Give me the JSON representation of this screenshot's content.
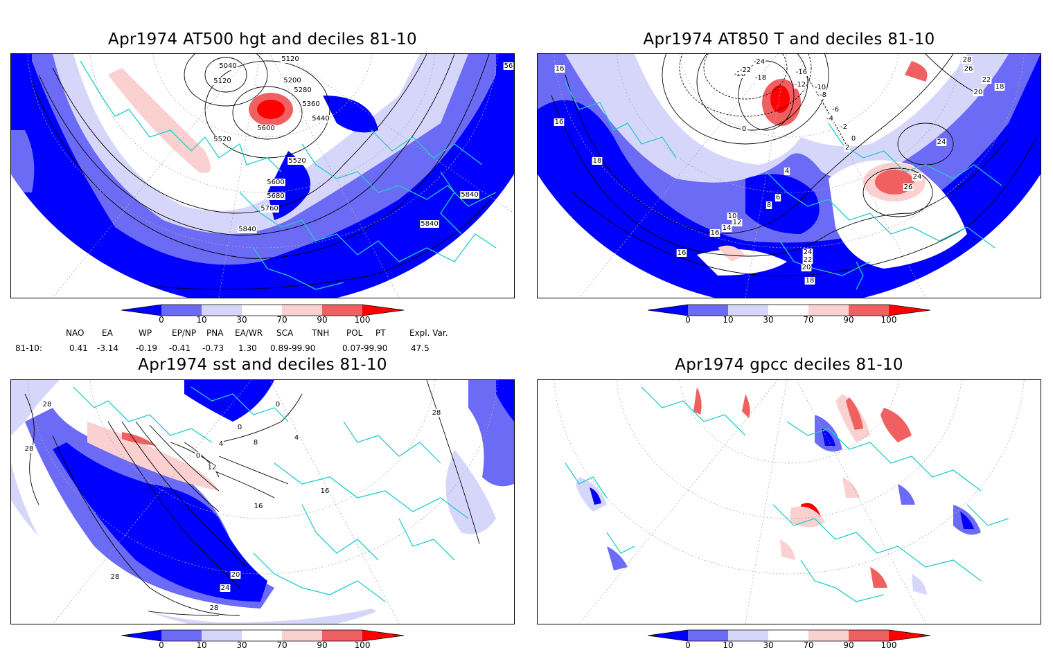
{
  "panels": {
    "hgt500": {
      "title": "Apr1974 AT500 hgt and deciles 81-10",
      "contour_labels": [
        "5040",
        "5120",
        "5120",
        "5200",
        "5280",
        "5360",
        "5440",
        "5520",
        "5520",
        "5600",
        "5600",
        "5680",
        "5760",
        "5840",
        "5840",
        "5840",
        "56"
      ]
    },
    "t850": {
      "title": "Apr1974 AT850 T and deciles 81-10",
      "contour_labels": [
        "-24",
        "-20",
        "-22",
        "-18",
        "-16",
        "-12",
        "-10",
        "-8",
        "-6",
        "-4",
        "-2",
        "0",
        "0",
        "2",
        "4",
        "6",
        "8",
        "10",
        "12",
        "14",
        "16",
        "16",
        "16",
        "16",
        "18",
        "18",
        "18",
        "20",
        "20",
        "22",
        "22",
        "24",
        "24",
        "24",
        "26",
        "26",
        "28"
      ]
    },
    "sst": {
      "title": "Apr1974 sst and deciles 81-10",
      "contour_labels": [
        "28",
        "28",
        "28",
        "28",
        "0",
        "0",
        "4",
        "8",
        "12",
        "16",
        "16",
        "20",
        "24",
        "28",
        "0",
        "4"
      ]
    },
    "gpcc": {
      "title": "Apr1974 gpcc deciles 81-10"
    }
  },
  "colorbar": {
    "ticks": [
      "0",
      "10",
      "30",
      "70",
      "90",
      "100"
    ],
    "colors": [
      "#0000ff",
      "#6b6bf5",
      "#d6d6fb",
      "#ffffff",
      "#fbd0d0",
      "#f06060",
      "#ff0000"
    ]
  },
  "indices": {
    "headers": [
      "NAO",
      "EA",
      "WP",
      "EP/NP",
      "PNA",
      "EA/WR",
      "SCA",
      "TNH",
      "POL",
      "PT",
      "Expl. Var."
    ],
    "row_label": "81-10:",
    "values": [
      "0.41",
      "-3.14",
      "-0.19",
      "-0.41",
      "-0.73",
      "1.30",
      "0.89-99.90",
      "0.07-99.90",
      "47.5"
    ]
  }
}
